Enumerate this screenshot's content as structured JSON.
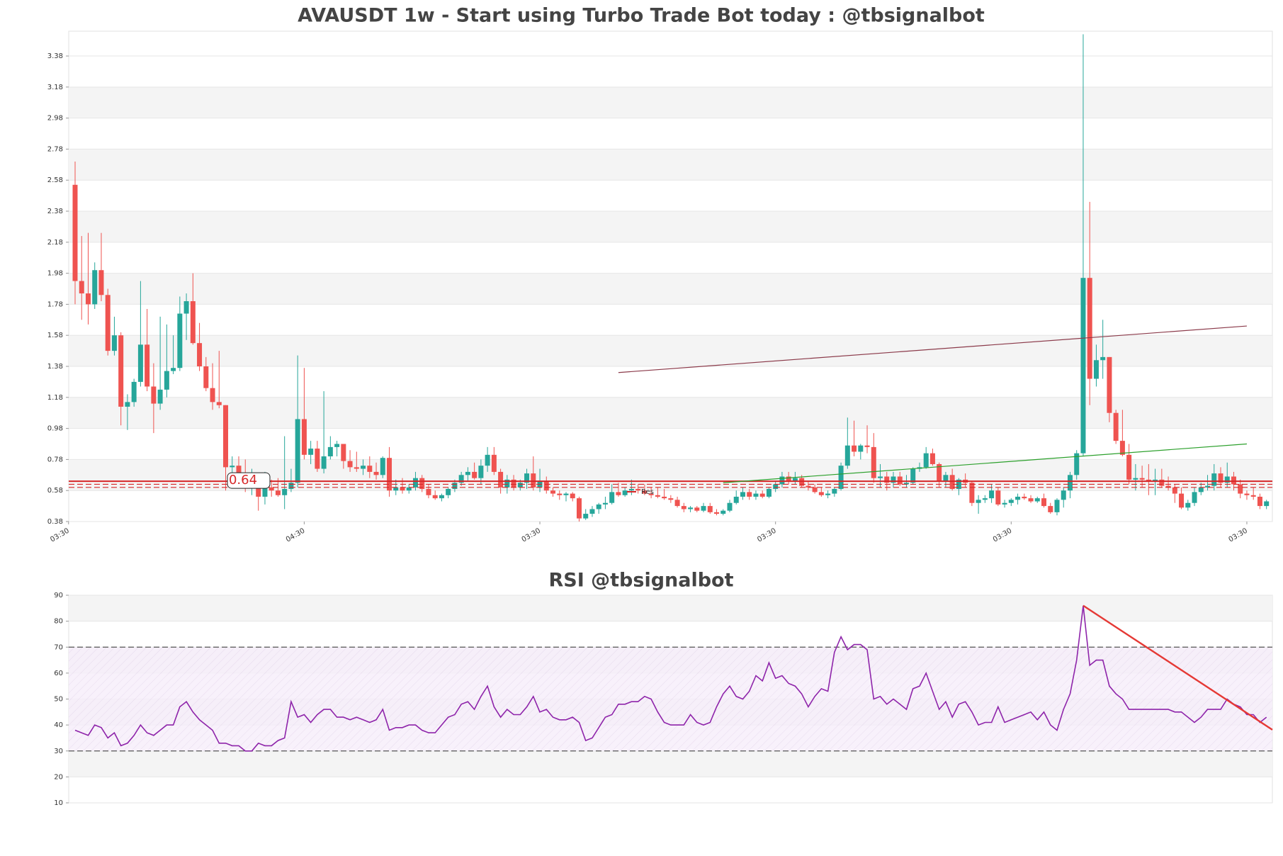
{
  "chart_data": [
    {
      "type": "candlestick",
      "title": "AVAUSDT 1w - Start using Turbo Trade Bot today : @tbsignalbot",
      "up_color": "#26a69a",
      "down_color": "#ef5350",
      "ylim": [
        0.38,
        3.54
      ],
      "yticks": [
        0.38,
        0.58,
        0.78,
        0.98,
        1.18,
        1.38,
        1.58,
        1.78,
        1.98,
        2.18,
        2.38,
        2.58,
        2.78,
        2.98,
        3.18,
        3.38
      ],
      "xticks": [
        {
          "value": -1,
          "label": "03:30"
        },
        {
          "value": 35,
          "label": "04:30"
        },
        {
          "value": 71,
          "label": "03:30"
        },
        {
          "value": 107,
          "label": "03:30"
        },
        {
          "value": 143,
          "label": "03:30"
        },
        {
          "value": 179,
          "label": "03:30"
        }
      ],
      "grid": true,
      "support": 0.64,
      "support_color": "#d62728",
      "lines": [
        0.62,
        0.6
      ],
      "trendlines": [
        {
          "name": "Res",
          "color": "#8b3a4a",
          "points": [
            [
              83,
              1.34
            ],
            [
              179,
              1.64
            ]
          ]
        },
        {
          "color": "#2ca02c",
          "points": [
            [
              99,
              0.63
            ],
            [
              179,
              0.88
            ]
          ]
        }
      ],
      "candles": [
        [
          2.55,
          2.7,
          1.78,
          1.93
        ],
        [
          1.93,
          2.22,
          1.68,
          1.85
        ],
        [
          1.85,
          2.24,
          1.65,
          1.78
        ],
        [
          1.78,
          2.05,
          1.75,
          2.0
        ],
        [
          2.0,
          2.24,
          1.8,
          1.84
        ],
        [
          1.84,
          1.88,
          1.45,
          1.48
        ],
        [
          1.48,
          1.7,
          1.45,
          1.58
        ],
        [
          1.58,
          1.6,
          1.0,
          1.12
        ],
        [
          1.12,
          1.2,
          0.97,
          1.15
        ],
        [
          1.15,
          1.3,
          1.12,
          1.28
        ],
        [
          1.28,
          1.93,
          1.25,
          1.52
        ],
        [
          1.52,
          1.75,
          1.22,
          1.25
        ],
        [
          1.25,
          1.4,
          0.95,
          1.14
        ],
        [
          1.14,
          1.7,
          1.1,
          1.23
        ],
        [
          1.23,
          1.65,
          1.18,
          1.35
        ],
        [
          1.35,
          1.58,
          1.33,
          1.37
        ],
        [
          1.37,
          1.83,
          1.35,
          1.72
        ],
        [
          1.72,
          1.85,
          1.55,
          1.8
        ],
        [
          1.8,
          1.98,
          1.52,
          1.53
        ],
        [
          1.53,
          1.66,
          1.35,
          1.38
        ],
        [
          1.38,
          1.44,
          1.22,
          1.24
        ],
        [
          1.24,
          1.4,
          1.1,
          1.15
        ],
        [
          1.15,
          1.48,
          1.11,
          1.13
        ],
        [
          1.13,
          1.13,
          0.58,
          0.73
        ],
        [
          0.73,
          0.8,
          0.62,
          0.74
        ],
        [
          0.74,
          0.8,
          0.6,
          0.68
        ],
        [
          0.68,
          0.78,
          0.57,
          0.6
        ],
        [
          0.6,
          0.72,
          0.55,
          0.61
        ],
        [
          0.61,
          0.66,
          0.45,
          0.54
        ],
        [
          0.54,
          0.7,
          0.49,
          0.6
        ],
        [
          0.6,
          0.65,
          0.54,
          0.58
        ],
        [
          0.58,
          0.66,
          0.54,
          0.55
        ],
        [
          0.55,
          0.93,
          0.46,
          0.59
        ],
        [
          0.59,
          0.72,
          0.57,
          0.63
        ],
        [
          0.63,
          1.45,
          0.6,
          1.04
        ],
        [
          1.04,
          1.37,
          0.78,
          0.81
        ],
        [
          0.81,
          0.9,
          0.75,
          0.85
        ],
        [
          0.85,
          0.9,
          0.7,
          0.72
        ],
        [
          0.72,
          1.22,
          0.69,
          0.8
        ],
        [
          0.8,
          0.93,
          0.78,
          0.86
        ],
        [
          0.86,
          0.9,
          0.8,
          0.88
        ],
        [
          0.88,
          0.88,
          0.72,
          0.77
        ],
        [
          0.77,
          0.84,
          0.7,
          0.73
        ],
        [
          0.73,
          0.83,
          0.7,
          0.72
        ],
        [
          0.72,
          0.78,
          0.68,
          0.74
        ],
        [
          0.74,
          0.8,
          0.66,
          0.7
        ],
        [
          0.7,
          0.76,
          0.65,
          0.68
        ],
        [
          0.68,
          0.8,
          0.66,
          0.79
        ],
        [
          0.79,
          0.86,
          0.54,
          0.58
        ],
        [
          0.58,
          0.65,
          0.55,
          0.6
        ],
        [
          0.6,
          0.66,
          0.56,
          0.58
        ],
        [
          0.58,
          0.62,
          0.56,
          0.6
        ],
        [
          0.6,
          0.7,
          0.58,
          0.66
        ],
        [
          0.66,
          0.68,
          0.57,
          0.59
        ],
        [
          0.59,
          0.62,
          0.53,
          0.55
        ],
        [
          0.55,
          0.58,
          0.52,
          0.53
        ],
        [
          0.53,
          0.56,
          0.51,
          0.55
        ],
        [
          0.55,
          0.6,
          0.53,
          0.59
        ],
        [
          0.59,
          0.65,
          0.57,
          0.63
        ],
        [
          0.63,
          0.7,
          0.61,
          0.68
        ],
        [
          0.68,
          0.73,
          0.64,
          0.7
        ],
        [
          0.7,
          0.76,
          0.65,
          0.66
        ],
        [
          0.66,
          0.78,
          0.62,
          0.74
        ],
        [
          0.74,
          0.86,
          0.7,
          0.81
        ],
        [
          0.81,
          0.86,
          0.68,
          0.7
        ],
        [
          0.7,
          0.72,
          0.56,
          0.6
        ],
        [
          0.6,
          0.68,
          0.56,
          0.65
        ],
        [
          0.65,
          0.68,
          0.58,
          0.6
        ],
        [
          0.6,
          0.65,
          0.58,
          0.63
        ],
        [
          0.63,
          0.72,
          0.59,
          0.69
        ],
        [
          0.69,
          0.8,
          0.58,
          0.6
        ],
        [
          0.6,
          0.72,
          0.57,
          0.64
        ],
        [
          0.64,
          0.67,
          0.56,
          0.58
        ],
        [
          0.58,
          0.6,
          0.54,
          0.56
        ],
        [
          0.56,
          0.58,
          0.52,
          0.55
        ],
        [
          0.55,
          0.57,
          0.51,
          0.56
        ],
        [
          0.56,
          0.57,
          0.51,
          0.53
        ],
        [
          0.53,
          0.54,
          0.38,
          0.4
        ],
        [
          0.4,
          0.46,
          0.39,
          0.43
        ],
        [
          0.43,
          0.48,
          0.41,
          0.46
        ],
        [
          0.46,
          0.5,
          0.43,
          0.49
        ],
        [
          0.49,
          0.54,
          0.46,
          0.5
        ],
        [
          0.5,
          0.62,
          0.49,
          0.57
        ],
        [
          0.57,
          0.63,
          0.54,
          0.55
        ],
        [
          0.55,
          0.6,
          0.54,
          0.58
        ],
        [
          0.58,
          0.65,
          0.55,
          0.59
        ],
        [
          0.59,
          0.62,
          0.56,
          0.58
        ],
        [
          0.58,
          0.62,
          0.55,
          0.56
        ],
        [
          0.56,
          0.6,
          0.53,
          0.55
        ],
        [
          0.55,
          0.6,
          0.53,
          0.54
        ],
        [
          0.54,
          0.59,
          0.52,
          0.53
        ],
        [
          0.53,
          0.55,
          0.5,
          0.52
        ],
        [
          0.52,
          0.54,
          0.47,
          0.48
        ],
        [
          0.48,
          0.5,
          0.44,
          0.46
        ],
        [
          0.46,
          0.48,
          0.44,
          0.47
        ],
        [
          0.47,
          0.48,
          0.44,
          0.45
        ],
        [
          0.45,
          0.5,
          0.44,
          0.48
        ],
        [
          0.48,
          0.5,
          0.43,
          0.44
        ],
        [
          0.44,
          0.46,
          0.42,
          0.43
        ],
        [
          0.43,
          0.46,
          0.42,
          0.45
        ],
        [
          0.45,
          0.52,
          0.44,
          0.5
        ],
        [
          0.5,
          0.58,
          0.49,
          0.54
        ],
        [
          0.54,
          0.6,
          0.52,
          0.57
        ],
        [
          0.57,
          0.59,
          0.52,
          0.54
        ],
        [
          0.54,
          0.58,
          0.52,
          0.56
        ],
        [
          0.56,
          0.58,
          0.53,
          0.54
        ],
        [
          0.54,
          0.6,
          0.53,
          0.59
        ],
        [
          0.59,
          0.64,
          0.57,
          0.62
        ],
        [
          0.62,
          0.7,
          0.6,
          0.67
        ],
        [
          0.67,
          0.7,
          0.62,
          0.64
        ],
        [
          0.64,
          0.7,
          0.62,
          0.66
        ],
        [
          0.66,
          0.68,
          0.6,
          0.61
        ],
        [
          0.61,
          0.64,
          0.58,
          0.6
        ],
        [
          0.6,
          0.62,
          0.56,
          0.57
        ],
        [
          0.57,
          0.6,
          0.54,
          0.55
        ],
        [
          0.55,
          0.58,
          0.53,
          0.56
        ],
        [
          0.56,
          0.6,
          0.54,
          0.59
        ],
        [
          0.59,
          0.76,
          0.58,
          0.74
        ],
        [
          0.74,
          1.05,
          0.72,
          0.87
        ],
        [
          0.87,
          1.03,
          0.8,
          0.83
        ],
        [
          0.83,
          0.88,
          0.78,
          0.87
        ],
        [
          0.87,
          1.0,
          0.82,
          0.86
        ],
        [
          0.86,
          0.95,
          0.63,
          0.66
        ],
        [
          0.66,
          0.75,
          0.6,
          0.67
        ],
        [
          0.67,
          0.7,
          0.58,
          0.63
        ],
        [
          0.63,
          0.7,
          0.6,
          0.67
        ],
        [
          0.67,
          0.7,
          0.61,
          0.62
        ],
        [
          0.62,
          0.68,
          0.6,
          0.63
        ],
        [
          0.63,
          0.73,
          0.62,
          0.72
        ],
        [
          0.72,
          0.76,
          0.7,
          0.73
        ],
        [
          0.73,
          0.86,
          0.72,
          0.82
        ],
        [
          0.82,
          0.85,
          0.74,
          0.75
        ],
        [
          0.75,
          0.76,
          0.6,
          0.64
        ],
        [
          0.64,
          0.7,
          0.6,
          0.68
        ],
        [
          0.68,
          0.72,
          0.58,
          0.59
        ],
        [
          0.59,
          0.66,
          0.55,
          0.65
        ],
        [
          0.65,
          0.69,
          0.6,
          0.63
        ],
        [
          0.63,
          0.64,
          0.48,
          0.5
        ],
        [
          0.5,
          0.55,
          0.43,
          0.52
        ],
        [
          0.52,
          0.55,
          0.5,
          0.53
        ],
        [
          0.53,
          0.62,
          0.5,
          0.58
        ],
        [
          0.58,
          0.6,
          0.48,
          0.49
        ],
        [
          0.49,
          0.52,
          0.47,
          0.5
        ],
        [
          0.5,
          0.53,
          0.48,
          0.52
        ],
        [
          0.52,
          0.56,
          0.49,
          0.54
        ],
        [
          0.54,
          0.56,
          0.52,
          0.53
        ],
        [
          0.53,
          0.55,
          0.5,
          0.51
        ],
        [
          0.51,
          0.54,
          0.5,
          0.53
        ],
        [
          0.53,
          0.56,
          0.47,
          0.48
        ],
        [
          0.48,
          0.5,
          0.43,
          0.44
        ],
        [
          0.44,
          0.53,
          0.42,
          0.52
        ],
        [
          0.52,
          0.6,
          0.47,
          0.58
        ],
        [
          0.58,
          0.7,
          0.53,
          0.68
        ],
        [
          0.68,
          0.84,
          0.65,
          0.82
        ],
        [
          0.82,
          3.52,
          0.8,
          1.95
        ],
        [
          1.95,
          2.44,
          1.13,
          1.3
        ],
        [
          1.3,
          1.52,
          1.25,
          1.42
        ],
        [
          1.42,
          1.68,
          1.3,
          1.44
        ],
        [
          1.44,
          1.44,
          1.02,
          1.08
        ],
        [
          1.08,
          1.1,
          0.88,
          0.9
        ],
        [
          0.9,
          1.1,
          0.8,
          0.81
        ],
        [
          0.81,
          0.88,
          0.62,
          0.65
        ],
        [
          0.65,
          0.75,
          0.58,
          0.66
        ],
        [
          0.66,
          0.74,
          0.6,
          0.65
        ],
        [
          0.65,
          0.75,
          0.55,
          0.64
        ],
        [
          0.64,
          0.72,
          0.55,
          0.65
        ],
        [
          0.65,
          0.72,
          0.6,
          0.61
        ],
        [
          0.61,
          0.67,
          0.58,
          0.6
        ],
        [
          0.6,
          0.62,
          0.5,
          0.56
        ],
        [
          0.56,
          0.6,
          0.46,
          0.47
        ],
        [
          0.47,
          0.52,
          0.45,
          0.5
        ],
        [
          0.5,
          0.6,
          0.48,
          0.57
        ],
        [
          0.57,
          0.63,
          0.55,
          0.6
        ],
        [
          0.6,
          0.68,
          0.58,
          0.61
        ],
        [
          0.61,
          0.75,
          0.58,
          0.69
        ],
        [
          0.69,
          0.73,
          0.6,
          0.63
        ],
        [
          0.63,
          0.76,
          0.6,
          0.67
        ],
        [
          0.67,
          0.7,
          0.58,
          0.62
        ],
        [
          0.62,
          0.65,
          0.53,
          0.56
        ],
        [
          0.56,
          0.58,
          0.52,
          0.55
        ],
        [
          0.55,
          0.6,
          0.52,
          0.54
        ],
        [
          0.54,
          0.56,
          0.46,
          0.48
        ],
        [
          0.48,
          0.52,
          0.46,
          0.51
        ]
      ]
    },
    {
      "type": "line",
      "title": "RSI @tbsignalbot",
      "color": "#8e24aa",
      "ylim": [
        10,
        90
      ],
      "yticks": [
        10,
        20,
        30,
        40,
        50,
        60,
        70,
        80,
        90
      ],
      "grid": true,
      "levels": [
        30,
        70
      ],
      "trendline": {
        "color": "#e53935",
        "points": [
          [
            154,
            86
          ],
          [
            183,
            38
          ]
        ]
      },
      "values": [
        38,
        37,
        36,
        40,
        39,
        35,
        37,
        32,
        33,
        36,
        40,
        37,
        36,
        38,
        40,
        40,
        47,
        49,
        45,
        42,
        40,
        38,
        33,
        33,
        32,
        32,
        30,
        30,
        33,
        32,
        32,
        34,
        35,
        49,
        43,
        44,
        41,
        44,
        46,
        46,
        43,
        43,
        42,
        43,
        42,
        41,
        42,
        46,
        38,
        39,
        39,
        40,
        40,
        38,
        37,
        37,
        40,
        43,
        44,
        48,
        49,
        46,
        51,
        55,
        47,
        43,
        46,
        44,
        44,
        47,
        51,
        45,
        46,
        43,
        42,
        42,
        43,
        41,
        34,
        35,
        39,
        43,
        44,
        48,
        48,
        49,
        49,
        51,
        50,
        45,
        41,
        40,
        40,
        40,
        44,
        41,
        40,
        41,
        47,
        52,
        55,
        51,
        50,
        53,
        59,
        57,
        64,
        58,
        59,
        56,
        55,
        52,
        47,
        51,
        54,
        53,
        68,
        74,
        69,
        71,
        71,
        69,
        50,
        51,
        48,
        50,
        48,
        46,
        54,
        55,
        60,
        53,
        46,
        49,
        43,
        48,
        49,
        45,
        40,
        41,
        41,
        47,
        41,
        42,
        43,
        44,
        45,
        42,
        45,
        40,
        38,
        46,
        52,
        65,
        86,
        63,
        65,
        65,
        55,
        52,
        50,
        46,
        46,
        46,
        46,
        46,
        46,
        46,
        45,
        45,
        43,
        41,
        43,
        46,
        46,
        46,
        50,
        48,
        47,
        44,
        44,
        41,
        43
      ]
    }
  ]
}
